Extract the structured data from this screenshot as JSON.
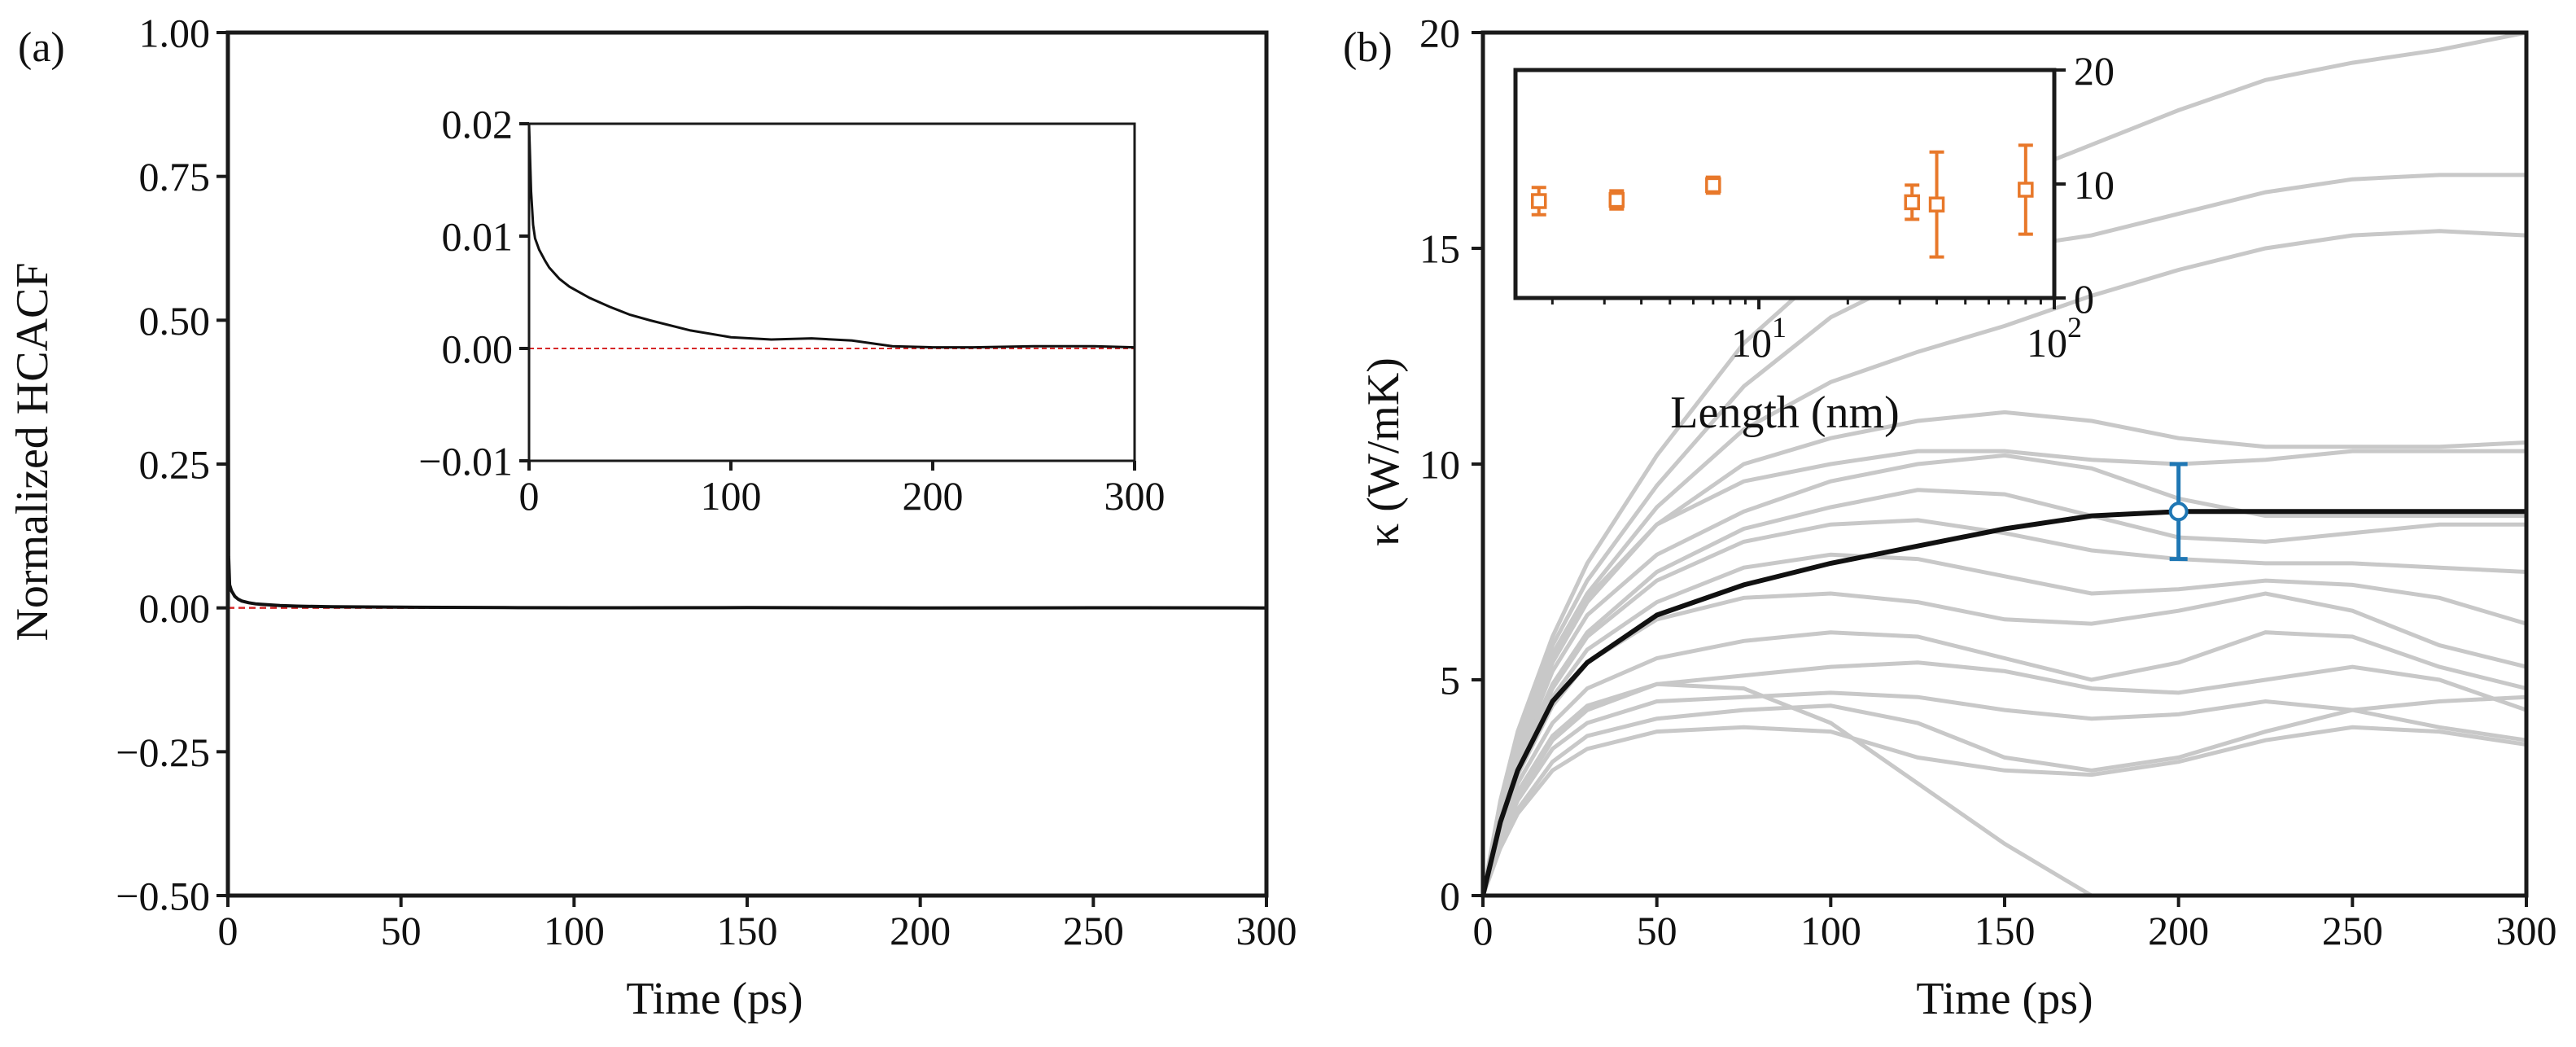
{
  "chart_data": [
    {
      "id": "a",
      "type": "line",
      "panel_label": "(a)",
      "xlabel": "Time (ps)",
      "ylabel": "Normalized HCACF",
      "xlim": [
        0,
        300
      ],
      "ylim": [
        -0.5,
        1.0
      ],
      "xticks": [
        "0",
        "50",
        "100",
        "150",
        "200",
        "250",
        "300"
      ],
      "xtick_values": [
        0,
        50,
        100,
        150,
        200,
        250,
        300
      ],
      "yticks": [
        "−0.50",
        "−0.25",
        "0.00",
        "0.25",
        "0.50",
        "0.75",
        "1.00"
      ],
      "ytick_values": [
        -0.5,
        -0.25,
        0.0,
        0.25,
        0.5,
        0.75,
        1.0
      ],
      "reference_line": {
        "y": 0,
        "color": "#d62728",
        "style": "dashed"
      },
      "series": [
        {
          "name": "HCACF",
          "color": "#111111",
          "x": [
            0,
            0.2,
            0.5,
            1,
            1.5,
            2,
            3,
            4,
            6,
            8,
            10,
            15,
            20,
            30,
            50,
            80,
            100,
            150,
            200,
            250,
            300
          ],
          "y": [
            1.0,
            0.09,
            0.04,
            0.03,
            0.025,
            0.02,
            0.015,
            0.012,
            0.009,
            0.007,
            0.006,
            0.004,
            0.003,
            0.002,
            0.0012,
            0.0005,
            0.0003,
            0.0005,
            0.0,
            0.0003,
            0.0
          ]
        }
      ],
      "inset": {
        "xlim": [
          0,
          300
        ],
        "ylim": [
          -0.01,
          0.02
        ],
        "xticks": [
          "0",
          "100",
          "200",
          "300"
        ],
        "xtick_values": [
          0,
          100,
          200,
          300
        ],
        "yticks": [
          "−0.01",
          "0.00",
          "0.01",
          "0.02"
        ],
        "ytick_values": [
          -0.01,
          0.0,
          0.01,
          0.02
        ],
        "x": [
          0,
          1,
          2,
          3,
          5,
          8,
          10,
          15,
          20,
          30,
          40,
          50,
          60,
          80,
          100,
          120,
          140,
          160,
          180,
          200,
          220,
          250,
          280,
          300
        ],
        "y": [
          0.02,
          0.014,
          0.011,
          0.0098,
          0.0088,
          0.0078,
          0.0072,
          0.0062,
          0.0055,
          0.0045,
          0.0037,
          0.003,
          0.0025,
          0.0016,
          0.001,
          0.0008,
          0.0009,
          0.0007,
          0.0002,
          0.0001,
          0.0001,
          0.0002,
          0.0002,
          0.0001
        ]
      }
    },
    {
      "id": "b",
      "type": "line",
      "panel_label": "(b)",
      "xlabel": "Time (ps)",
      "ylabel": "κ (W/mK)",
      "xlim": [
        0,
        300
      ],
      "ylim": [
        0,
        20
      ],
      "xticks": [
        "0",
        "50",
        "100",
        "150",
        "200",
        "250",
        "300"
      ],
      "xtick_values": [
        0,
        50,
        100,
        150,
        200,
        250,
        300
      ],
      "yticks": [
        "0",
        "5",
        "10",
        "15",
        "20"
      ],
      "ytick_values": [
        0,
        5,
        10,
        15,
        20
      ],
      "x": [
        0,
        5,
        10,
        20,
        30,
        50,
        75,
        100,
        125,
        150,
        175,
        200,
        225,
        250,
        275,
        300
      ],
      "runs": [
        {
          "name": "run-1",
          "y": [
            0,
            2.2,
            3.8,
            6.0,
            7.7,
            10.2,
            12.8,
            14.6,
            15.7,
            16.6,
            17.4,
            18.2,
            18.9,
            19.3,
            19.6,
            20.0
          ]
        },
        {
          "name": "run-2",
          "y": [
            0,
            2.1,
            3.6,
            5.8,
            7.3,
            9.5,
            11.8,
            13.4,
            14.4,
            15.0,
            15.3,
            15.8,
            16.3,
            16.6,
            16.7,
            16.7
          ]
        },
        {
          "name": "run-3",
          "y": [
            0,
            2.0,
            3.5,
            5.6,
            7.0,
            9.0,
            10.8,
            11.9,
            12.6,
            13.2,
            13.9,
            14.5,
            15.0,
            15.3,
            15.4,
            15.3
          ]
        },
        {
          "name": "run-4",
          "y": [
            0,
            1.9,
            3.4,
            5.4,
            6.8,
            8.6,
            10.0,
            10.6,
            11.0,
            11.2,
            11.0,
            10.6,
            10.4,
            10.4,
            10.4,
            10.5
          ]
        },
        {
          "name": "run-5",
          "y": [
            0,
            2.0,
            3.5,
            5.5,
            6.9,
            8.6,
            9.6,
            10.0,
            10.3,
            10.3,
            10.1,
            10.0,
            10.1,
            10.3,
            10.3,
            10.3
          ]
        },
        {
          "name": "run-6",
          "y": [
            0,
            1.8,
            3.2,
            5.2,
            6.5,
            7.9,
            8.9,
            9.6,
            10.0,
            10.2,
            9.9,
            9.2,
            8.8,
            8.8,
            8.8,
            8.8
          ]
        },
        {
          "name": "run-7",
          "y": [
            0,
            1.8,
            3.1,
            4.9,
            6.1,
            7.5,
            8.5,
            9.0,
            9.4,
            9.3,
            8.8,
            8.3,
            8.2,
            8.4,
            8.6,
            8.6
          ]
        },
        {
          "name": "run-8",
          "y": [
            0,
            1.7,
            3.0,
            4.8,
            6.0,
            7.3,
            8.2,
            8.6,
            8.7,
            8.4,
            8.0,
            7.8,
            7.7,
            7.7,
            7.6,
            7.5
          ]
        },
        {
          "name": "run-9",
          "y": [
            0,
            1.7,
            2.9,
            4.6,
            5.7,
            6.8,
            7.6,
            7.9,
            7.8,
            7.4,
            7.0,
            7.1,
            7.3,
            7.2,
            6.9,
            6.3
          ]
        },
        {
          "name": "run-10",
          "y": [
            0,
            1.6,
            2.8,
            4.4,
            5.4,
            6.4,
            6.9,
            7.0,
            6.8,
            6.4,
            6.3,
            6.6,
            7.0,
            6.6,
            5.8,
            5.3
          ]
        },
        {
          "name": "run-11",
          "y": [
            0,
            1.5,
            2.6,
            4.0,
            4.8,
            5.5,
            5.9,
            6.1,
            6.0,
            5.5,
            5.0,
            5.4,
            6.1,
            6.0,
            5.3,
            4.8
          ]
        },
        {
          "name": "run-12",
          "y": [
            0,
            1.4,
            2.4,
            3.7,
            4.4,
            4.9,
            5.1,
            5.3,
            5.4,
            5.2,
            4.8,
            4.7,
            5.0,
            5.3,
            5.0,
            4.3
          ]
        },
        {
          "name": "run-13",
          "y": [
            0,
            1.3,
            2.2,
            3.4,
            4.0,
            4.5,
            4.6,
            4.7,
            4.6,
            4.3,
            4.1,
            4.2,
            4.5,
            4.3,
            3.9,
            3.6
          ]
        },
        {
          "name": "run-14",
          "y": [
            0,
            1.2,
            2.0,
            3.1,
            3.7,
            4.1,
            4.3,
            4.4,
            4.0,
            3.2,
            2.9,
            3.2,
            3.8,
            4.3,
            4.5,
            4.6
          ]
        },
        {
          "name": "run-15",
          "y": [
            0,
            1.1,
            1.9,
            2.9,
            3.4,
            3.8,
            3.9,
            3.8,
            3.2,
            2.9,
            2.8,
            3.1,
            3.6,
            3.9,
            3.8,
            3.5
          ]
        },
        {
          "name": "run-16",
          "y": [
            0,
            1.3,
            2.3,
            3.6,
            4.3,
            4.9,
            4.8,
            4.0,
            2.6,
            1.2,
            0.0,
            null,
            null,
            null,
            null,
            null
          ]
        }
      ],
      "mean": {
        "name": "average",
        "color": "#111111",
        "y": [
          0,
          1.7,
          2.9,
          4.5,
          5.4,
          6.5,
          7.2,
          7.7,
          8.1,
          8.5,
          8.8,
          8.9,
          8.9,
          8.9,
          8.9,
          8.9
        ]
      },
      "highlight": {
        "x": 200,
        "y": 8.9,
        "err": 1.1,
        "color": "#1f77b4",
        "marker": "circle"
      },
      "inset": {
        "type": "scatter",
        "xscale": "log",
        "xlim": [
          1.5,
          100
        ],
        "ylim": [
          0,
          20
        ],
        "xlabel": "Length (nm)",
        "xticks": [
          "10",
          "10"
        ],
        "xtick_exponents": [
          "1",
          "2"
        ],
        "xtick_values": [
          10,
          100
        ],
        "yticks": [
          "0",
          "10",
          "20"
        ],
        "ytick_values": [
          0,
          10,
          20
        ],
        "marker_color": "#e8782a",
        "points": [
          {
            "x": 1.8,
            "y": 8.5,
            "err": 1.2
          },
          {
            "x": 3.3,
            "y": 8.6,
            "err": 0.8
          },
          {
            "x": 7.0,
            "y": 9.9,
            "err": 0.7
          },
          {
            "x": 33,
            "y": 8.4,
            "err": 1.5
          },
          {
            "x": 40,
            "y": 8.2,
            "err": 4.6
          },
          {
            "x": 80,
            "y": 9.5,
            "err": 3.9
          }
        ]
      }
    }
  ]
}
